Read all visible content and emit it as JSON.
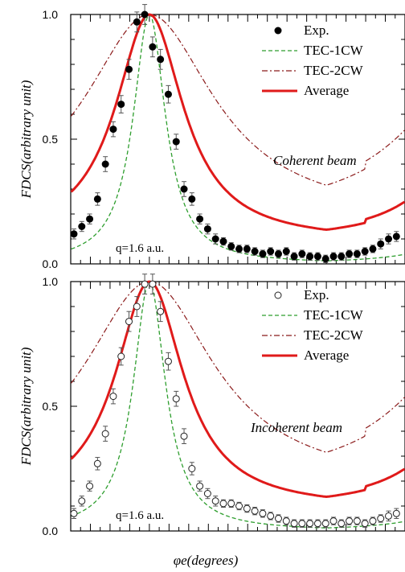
{
  "chart_data": [
    {
      "type": "scatter",
      "ylabel": "FDCS(arbitrary unit)",
      "annotations": [
        "Coherent beam",
        "q=1.6 a.u."
      ],
      "ylim": [
        0,
        1.0
      ],
      "xlim": [
        0,
        360
      ],
      "y_ticks": [
        "0.0",
        "0.5",
        "1.0"
      ],
      "legend_position": "top-right",
      "series": [
        {
          "name": "Exp.",
          "style": "filled-circle",
          "color": "#000000",
          "x": [
            0,
            8,
            16,
            24,
            32,
            40,
            48,
            56,
            64,
            72,
            80,
            88,
            96,
            104,
            112,
            120,
            128,
            136,
            144,
            152,
            160,
            168,
            176,
            184,
            192,
            200,
            208,
            216,
            224,
            232,
            240,
            248,
            256,
            264,
            272,
            280,
            288,
            296,
            304,
            312,
            320,
            328,
            336
          ],
          "y": [
            0.12,
            0.15,
            0.18,
            0.26,
            0.4,
            0.54,
            0.64,
            0.78,
            0.97,
            1.0,
            0.87,
            0.82,
            0.68,
            0.49,
            0.3,
            0.26,
            0.18,
            0.14,
            0.1,
            0.09,
            0.07,
            0.06,
            0.06,
            0.05,
            0.04,
            0.05,
            0.04,
            0.05,
            0.03,
            0.04,
            0.03,
            0.03,
            0.02,
            0.03,
            0.03,
            0.04,
            0.04,
            0.05,
            0.06,
            0.08,
            0.1,
            0.11,
            0.12
          ],
          "err": [
            0.02,
            0.02,
            0.02,
            0.025,
            0.03,
            0.03,
            0.035,
            0.04,
            0.04,
            0.04,
            0.04,
            0.04,
            0.035,
            0.03,
            0.03,
            0.025,
            0.02,
            0.02,
            0.02,
            0.015,
            0.015,
            0.015,
            0.015,
            0.015,
            0.015,
            0.015,
            0.015,
            0.015,
            0.015,
            0.015,
            0.015,
            0.015,
            0.015,
            0.015,
            0.015,
            0.015,
            0.015,
            0.015,
            0.015,
            0.02,
            0.02,
            0.02,
            0.02
          ]
        },
        {
          "name": "TEC-1CW",
          "style": "dashed",
          "color": "#2e9e2e",
          "center": 80,
          "width": 20
        },
        {
          "name": "TEC-2CW",
          "style": "dash-dot",
          "color": "#8b1a1a",
          "center": 80,
          "width": 80,
          "floor": 0.18
        },
        {
          "name": "Average",
          "style": "solid",
          "color": "#e01a1a",
          "center": 80,
          "width": 42,
          "floor": 0.09
        }
      ]
    },
    {
      "type": "scatter",
      "ylabel": "FDCS(arbitrary unit)",
      "xlabel": "φe(degrees)",
      "annotations": [
        "Incoherent beam",
        "q=1.6 a.u."
      ],
      "ylim": [
        0,
        1.0
      ],
      "xlim": [
        0,
        360
      ],
      "y_ticks": [
        "0.0",
        "0.5",
        "1.0"
      ],
      "legend_position": "top-right",
      "series": [
        {
          "name": "Exp.",
          "style": "open-circle",
          "color": "#000000",
          "x": [
            0,
            8,
            16,
            24,
            32,
            40,
            48,
            56,
            64,
            72,
            80,
            88,
            96,
            104,
            112,
            120,
            128,
            136,
            144,
            152,
            160,
            168,
            176,
            184,
            192,
            200,
            208,
            216,
            224,
            232,
            240,
            248,
            256,
            264,
            272,
            280,
            288,
            296,
            304,
            312,
            320,
            328,
            336
          ],
          "y": [
            0.07,
            0.12,
            0.18,
            0.27,
            0.39,
            0.54,
            0.7,
            0.84,
            0.9,
            0.99,
            0.99,
            0.88,
            0.68,
            0.53,
            0.38,
            0.25,
            0.18,
            0.15,
            0.12,
            0.11,
            0.11,
            0.1,
            0.09,
            0.08,
            0.07,
            0.06,
            0.05,
            0.04,
            0.03,
            0.03,
            0.03,
            0.03,
            0.03,
            0.04,
            0.03,
            0.04,
            0.04,
            0.03,
            0.04,
            0.05,
            0.06,
            0.07,
            0.08
          ],
          "err": [
            0.02,
            0.02,
            0.02,
            0.025,
            0.03,
            0.03,
            0.035,
            0.04,
            0.04,
            0.04,
            0.04,
            0.04,
            0.035,
            0.03,
            0.03,
            0.025,
            0.02,
            0.02,
            0.02,
            0.015,
            0.015,
            0.015,
            0.015,
            0.015,
            0.015,
            0.015,
            0.015,
            0.015,
            0.015,
            0.015,
            0.015,
            0.015,
            0.015,
            0.015,
            0.015,
            0.015,
            0.015,
            0.015,
            0.015,
            0.015,
            0.02,
            0.02,
            0.02
          ]
        },
        {
          "name": "TEC-1CW",
          "style": "dashed",
          "color": "#2e9e2e",
          "center": 80,
          "width": 20
        },
        {
          "name": "TEC-2CW",
          "style": "dash-dot",
          "color": "#8b1a1a",
          "center": 80,
          "width": 80,
          "floor": 0.18
        },
        {
          "name": "Average",
          "style": "solid",
          "color": "#e01a1a",
          "center": 80,
          "width": 42,
          "floor": 0.09
        }
      ]
    }
  ]
}
